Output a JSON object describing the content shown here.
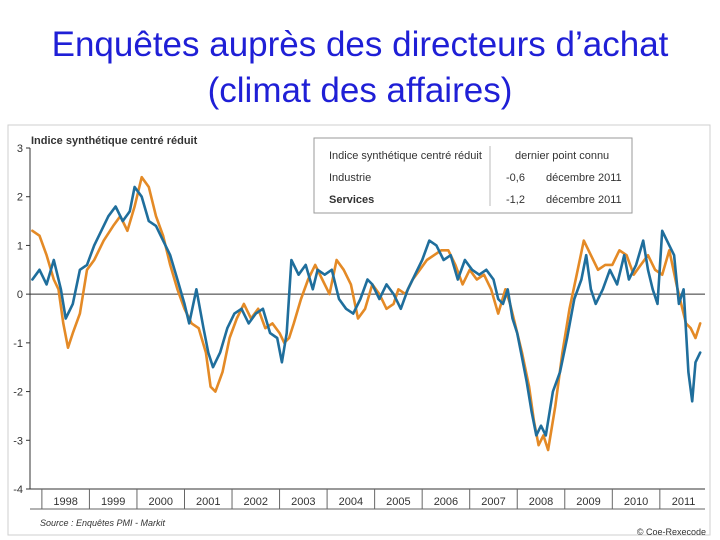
{
  "slide": {
    "title_line1": "Enquêtes auprès des directeurs d’achat",
    "title_line2": "(climat des affaires)"
  },
  "chart_data": {
    "type": "line",
    "title": "Indice synthétique centré réduit",
    "ylim": [
      -4,
      3
    ],
    "xlim": [
      1997.75,
      2011.95
    ],
    "y_ticks": [
      3,
      2,
      1,
      0,
      -1,
      -2,
      -3,
      -4
    ],
    "x_ticks": [
      "1998",
      "1999",
      "2000",
      "2001",
      "2002",
      "2003",
      "2004",
      "2005",
      "2006",
      "2007",
      "2008",
      "2009",
      "2010",
      "2011"
    ],
    "grid": false,
    "legend": {
      "position": "top-right",
      "header": [
        "Indice synthétique centré réduit",
        "dernier point connu"
      ],
      "rows": [
        {
          "name": "Industrie",
          "value": "-0,6",
          "date": "décembre 2011",
          "color": "#e48a26"
        },
        {
          "name": "Services",
          "value": "-1,2",
          "date": "décembre 2011",
          "color": "#1f6e9c"
        }
      ]
    },
    "series": [
      {
        "name": "Industrie",
        "color": "#e48a26",
        "points": [
          [
            1997.8,
            1.3
          ],
          [
            1997.95,
            1.2
          ],
          [
            1998.1,
            0.8
          ],
          [
            1998.25,
            0.3
          ],
          [
            1998.35,
            0.1
          ],
          [
            1998.45,
            -0.6
          ],
          [
            1998.55,
            -1.1
          ],
          [
            1998.65,
            -0.8
          ],
          [
            1998.8,
            -0.4
          ],
          [
            1998.95,
            0.5
          ],
          [
            1999.1,
            0.7
          ],
          [
            1999.3,
            1.1
          ],
          [
            1999.5,
            1.4
          ],
          [
            1999.65,
            1.6
          ],
          [
            1999.8,
            1.3
          ],
          [
            1999.95,
            1.8
          ],
          [
            2000.1,
            2.4
          ],
          [
            2000.25,
            2.2
          ],
          [
            2000.4,
            1.6
          ],
          [
            2000.55,
            1.2
          ],
          [
            2000.7,
            0.6
          ],
          [
            2000.85,
            0.1
          ],
          [
            2001.0,
            -0.3
          ],
          [
            2001.15,
            -0.6
          ],
          [
            2001.3,
            -0.7
          ],
          [
            2001.45,
            -1.2
          ],
          [
            2001.55,
            -1.9
          ],
          [
            2001.65,
            -2.0
          ],
          [
            2001.8,
            -1.6
          ],
          [
            2001.95,
            -0.9
          ],
          [
            2002.1,
            -0.5
          ],
          [
            2002.25,
            -0.2
          ],
          [
            2002.4,
            -0.5
          ],
          [
            2002.55,
            -0.3
          ],
          [
            2002.7,
            -0.7
          ],
          [
            2002.85,
            -0.6
          ],
          [
            2003.0,
            -0.8
          ],
          [
            2003.1,
            -1.0
          ],
          [
            2003.2,
            -0.9
          ],
          [
            2003.3,
            -0.6
          ],
          [
            2003.45,
            -0.1
          ],
          [
            2003.6,
            0.3
          ],
          [
            2003.75,
            0.6
          ],
          [
            2003.9,
            0.3
          ],
          [
            2004.05,
            0.0
          ],
          [
            2004.2,
            0.7
          ],
          [
            2004.35,
            0.5
          ],
          [
            2004.5,
            0.2
          ],
          [
            2004.65,
            -0.5
          ],
          [
            2004.8,
            -0.3
          ],
          [
            2004.95,
            0.2
          ],
          [
            2005.1,
            0.0
          ],
          [
            2005.25,
            -0.3
          ],
          [
            2005.4,
            -0.2
          ],
          [
            2005.5,
            0.1
          ],
          [
            2005.65,
            0.0
          ],
          [
            2005.8,
            0.3
          ],
          [
            2005.95,
            0.5
          ],
          [
            2006.1,
            0.7
          ],
          [
            2006.25,
            0.8
          ],
          [
            2006.4,
            0.9
          ],
          [
            2006.55,
            0.9
          ],
          [
            2006.7,
            0.6
          ],
          [
            2006.85,
            0.2
          ],
          [
            2007.0,
            0.5
          ],
          [
            2007.15,
            0.3
          ],
          [
            2007.3,
            0.4
          ],
          [
            2007.45,
            0.1
          ],
          [
            2007.6,
            -0.4
          ],
          [
            2007.75,
            0.1
          ],
          [
            2007.85,
            -0.2
          ],
          [
            2007.95,
            -0.6
          ],
          [
            2008.1,
            -1.2
          ],
          [
            2008.25,
            -1.9
          ],
          [
            2008.35,
            -2.6
          ],
          [
            2008.45,
            -3.1
          ],
          [
            2008.55,
            -2.9
          ],
          [
            2008.65,
            -3.2
          ],
          [
            2008.8,
            -2.3
          ],
          [
            2008.95,
            -1.2
          ],
          [
            2009.1,
            -0.3
          ],
          [
            2009.25,
            0.4
          ],
          [
            2009.4,
            1.1
          ],
          [
            2009.55,
            0.8
          ],
          [
            2009.7,
            0.5
          ],
          [
            2009.85,
            0.6
          ],
          [
            2010.0,
            0.6
          ],
          [
            2010.15,
            0.9
          ],
          [
            2010.3,
            0.8
          ],
          [
            2010.45,
            0.4
          ],
          [
            2010.6,
            0.6
          ],
          [
            2010.75,
            0.8
          ],
          [
            2010.9,
            0.5
          ],
          [
            2011.05,
            0.4
          ],
          [
            2011.2,
            0.9
          ],
          [
            2011.35,
            0.2
          ],
          [
            2011.45,
            -0.2
          ],
          [
            2011.55,
            -0.6
          ],
          [
            2011.65,
            -0.7
          ],
          [
            2011.75,
            -0.9
          ],
          [
            2011.85,
            -0.6
          ]
        ]
      },
      {
        "name": "Services",
        "color": "#1f6e9c",
        "points": [
          [
            1997.8,
            0.3
          ],
          [
            1997.95,
            0.5
          ],
          [
            1998.1,
            0.2
          ],
          [
            1998.25,
            0.7
          ],
          [
            1998.4,
            0.1
          ],
          [
            1998.5,
            -0.5
          ],
          [
            1998.65,
            -0.2
          ],
          [
            1998.8,
            0.5
          ],
          [
            1998.95,
            0.6
          ],
          [
            1999.1,
            1.0
          ],
          [
            1999.25,
            1.3
          ],
          [
            1999.4,
            1.6
          ],
          [
            1999.55,
            1.8
          ],
          [
            1999.7,
            1.5
          ],
          [
            1999.85,
            1.7
          ],
          [
            1999.95,
            2.2
          ],
          [
            2000.1,
            2.0
          ],
          [
            2000.25,
            1.5
          ],
          [
            2000.4,
            1.4
          ],
          [
            2000.55,
            1.1
          ],
          [
            2000.7,
            0.8
          ],
          [
            2000.85,
            0.3
          ],
          [
            2001.0,
            -0.2
          ],
          [
            2001.1,
            -0.6
          ],
          [
            2001.25,
            0.1
          ],
          [
            2001.4,
            -0.7
          ],
          [
            2001.5,
            -1.2
          ],
          [
            2001.6,
            -1.5
          ],
          [
            2001.75,
            -1.2
          ],
          [
            2001.9,
            -0.7
          ],
          [
            2002.05,
            -0.4
          ],
          [
            2002.2,
            -0.3
          ],
          [
            2002.35,
            -0.6
          ],
          [
            2002.5,
            -0.4
          ],
          [
            2002.65,
            -0.3
          ],
          [
            2002.8,
            -0.8
          ],
          [
            2002.95,
            -0.9
          ],
          [
            2003.05,
            -1.4
          ],
          [
            2003.15,
            -0.8
          ],
          [
            2003.25,
            0.7
          ],
          [
            2003.4,
            0.4
          ],
          [
            2003.55,
            0.6
          ],
          [
            2003.7,
            0.1
          ],
          [
            2003.8,
            0.5
          ],
          [
            2003.95,
            0.4
          ],
          [
            2004.1,
            0.5
          ],
          [
            2004.25,
            -0.1
          ],
          [
            2004.4,
            -0.3
          ],
          [
            2004.55,
            -0.4
          ],
          [
            2004.7,
            -0.1
          ],
          [
            2004.85,
            0.3
          ],
          [
            2004.95,
            0.2
          ],
          [
            2005.1,
            -0.1
          ],
          [
            2005.25,
            0.2
          ],
          [
            2005.4,
            0.0
          ],
          [
            2005.55,
            -0.3
          ],
          [
            2005.7,
            0.1
          ],
          [
            2005.85,
            0.4
          ],
          [
            2006.0,
            0.7
          ],
          [
            2006.15,
            1.1
          ],
          [
            2006.3,
            1.0
          ],
          [
            2006.45,
            0.7
          ],
          [
            2006.6,
            0.8
          ],
          [
            2006.75,
            0.3
          ],
          [
            2006.9,
            0.7
          ],
          [
            2007.05,
            0.5
          ],
          [
            2007.2,
            0.4
          ],
          [
            2007.35,
            0.5
          ],
          [
            2007.5,
            0.3
          ],
          [
            2007.6,
            -0.1
          ],
          [
            2007.7,
            -0.2
          ],
          [
            2007.8,
            0.1
          ],
          [
            2007.9,
            -0.5
          ],
          [
            2008.0,
            -0.8
          ],
          [
            2008.1,
            -1.3
          ],
          [
            2008.2,
            -1.8
          ],
          [
            2008.3,
            -2.4
          ],
          [
            2008.4,
            -2.9
          ],
          [
            2008.5,
            -2.7
          ],
          [
            2008.6,
            -2.9
          ],
          [
            2008.75,
            -2.0
          ],
          [
            2008.9,
            -1.6
          ],
          [
            2009.05,
            -0.9
          ],
          [
            2009.2,
            -0.1
          ],
          [
            2009.35,
            0.3
          ],
          [
            2009.45,
            0.8
          ],
          [
            2009.55,
            0.1
          ],
          [
            2009.65,
            -0.2
          ],
          [
            2009.8,
            0.1
          ],
          [
            2009.95,
            0.5
          ],
          [
            2010.1,
            0.2
          ],
          [
            2010.25,
            0.8
          ],
          [
            2010.35,
            0.3
          ],
          [
            2010.5,
            0.6
          ],
          [
            2010.65,
            1.1
          ],
          [
            2010.75,
            0.5
          ],
          [
            2010.85,
            0.1
          ],
          [
            2010.95,
            -0.2
          ],
          [
            2011.05,
            1.3
          ],
          [
            2011.2,
            1.0
          ],
          [
            2011.3,
            0.8
          ],
          [
            2011.4,
            -0.2
          ],
          [
            2011.5,
            0.1
          ],
          [
            2011.6,
            -1.6
          ],
          [
            2011.68,
            -2.2
          ],
          [
            2011.75,
            -1.4
          ],
          [
            2011.85,
            -1.2
          ]
        ]
      }
    ],
    "footer_source": "Source : Enquêtes PMI - Markit",
    "footer_brand": "© Coe-Rexecode"
  }
}
